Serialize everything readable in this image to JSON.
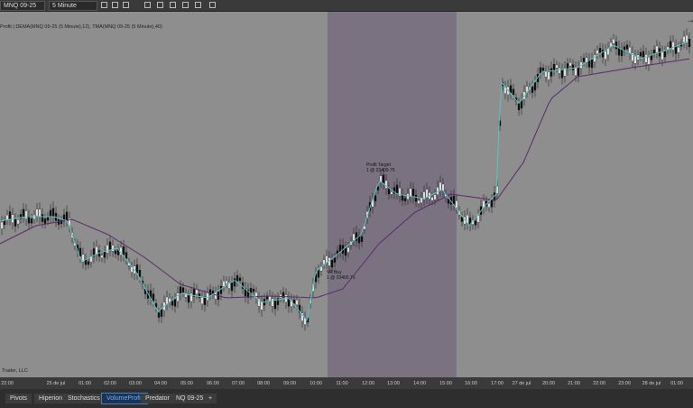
{
  "toolbar": {
    "instrument": "MNQ 09-25",
    "interval": "5 Minute"
  },
  "chart": {
    "indicator_label": "Profit | DEMA(MNQ 09-25 (5 Minute),12), TMA(MNQ 09-25 (5 Minute),40)",
    "copyright": "Trader, LLC",
    "annotations": [
      {
        "line1": "Profit Target",
        "line2": "1 @ 23409.75"
      },
      {
        "line1": "VP Buy",
        "line2": "1 @ 23400.75"
      }
    ],
    "time_labels": [
      "22:00",
      "25 de jul",
      "01:00",
      "02:00",
      "03:00",
      "04:00",
      "05:00",
      "06:00",
      "07:00",
      "08:00",
      "09:00",
      "10:00",
      "11:00",
      "12:00",
      "13:00",
      "14:00",
      "15:00",
      "16:00",
      "17:00",
      "27 de jul",
      "20:00",
      "21:00",
      "22:00",
      "23:00",
      "28 de jul",
      "01:00"
    ]
  },
  "tabs": [
    "Pivots",
    "Hiperion",
    "Stochastics",
    "VolumeProfit",
    "Predator",
    "NQ 09-25",
    "+"
  ]
}
